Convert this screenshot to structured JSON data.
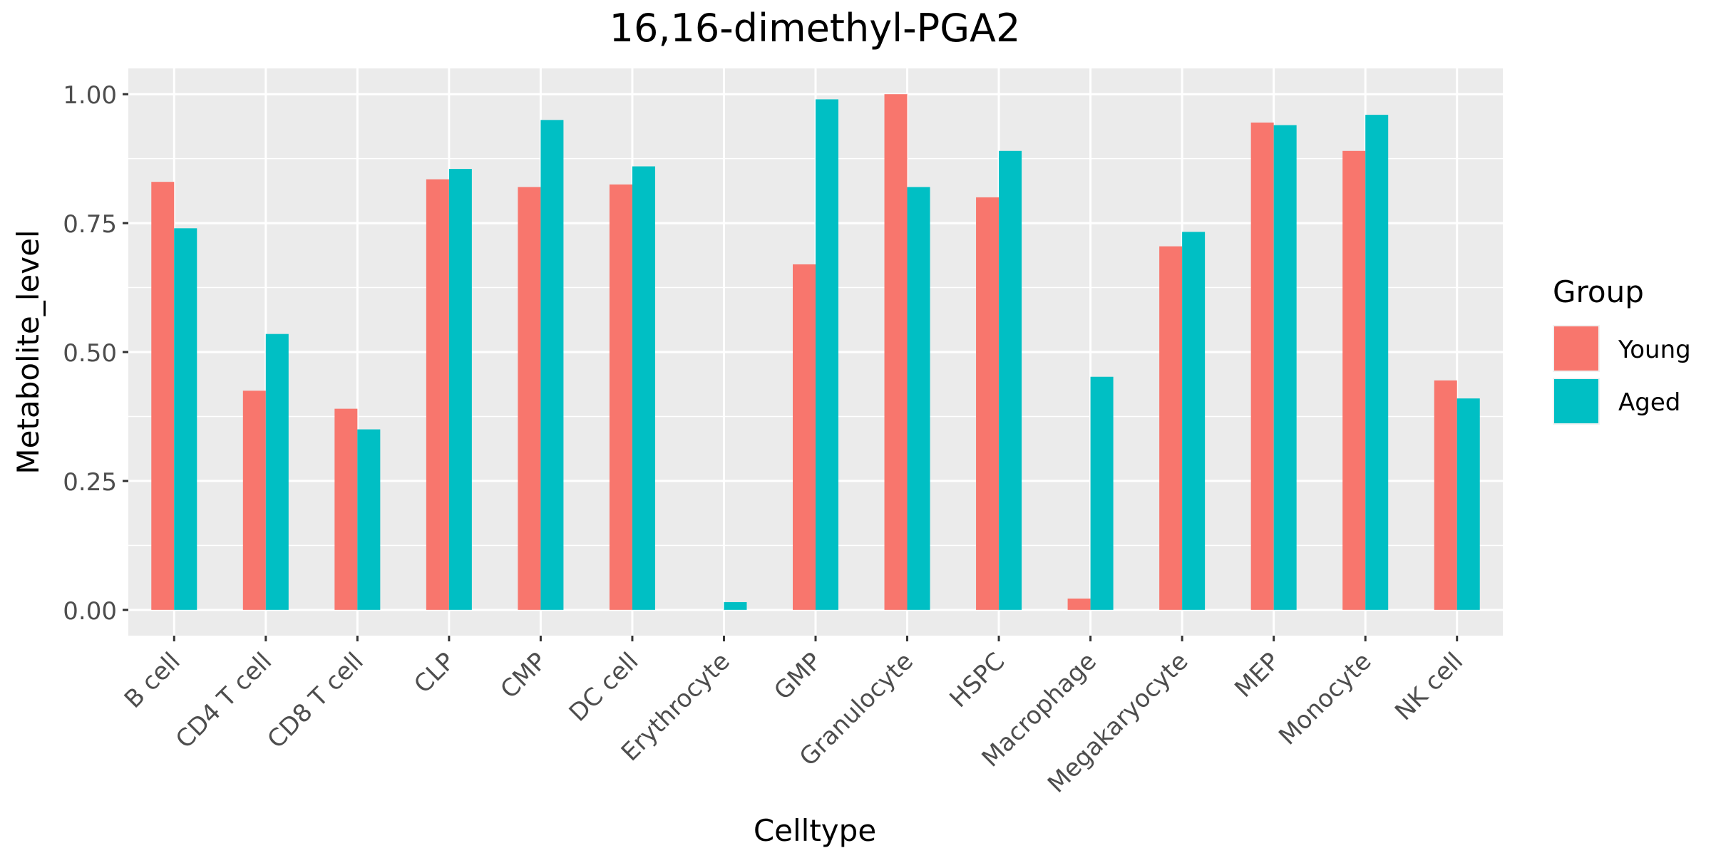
{
  "chart_data": {
    "type": "bar",
    "title": "16,16-dimethyl-PGA2",
    "xlabel": "Celltype",
    "ylabel": "Metabolite_level",
    "ylim": [
      -0.05,
      1.05
    ],
    "yticks": [
      0.0,
      0.25,
      0.5,
      0.75,
      1.0
    ],
    "ytick_labels": [
      "0.00",
      "0.25",
      "0.50",
      "0.75",
      "1.00"
    ],
    "grid": true,
    "legend_position": "right",
    "legend_title": "Group",
    "categories": [
      "B cell",
      "CD4 T cell",
      "CD8 T cell",
      "CLP",
      "CMP",
      "DC cell",
      "Erythrocyte",
      "GMP",
      "Granulocyte",
      "HSPC",
      "Macrophage",
      "Megakaryocyte",
      "MEP",
      "Monocyte",
      "NK cell"
    ],
    "series": [
      {
        "name": "Young",
        "color": "#F8766D",
        "values": [
          0.83,
          0.425,
          0.39,
          0.835,
          0.82,
          0.825,
          0.0,
          0.67,
          1.0,
          0.8,
          0.022,
          0.705,
          0.945,
          0.89,
          0.445
        ]
      },
      {
        "name": "Aged",
        "color": "#00BFC4",
        "values": [
          0.74,
          0.535,
          0.35,
          0.855,
          0.95,
          0.86,
          0.015,
          0.99,
          0.82,
          0.89,
          0.452,
          0.733,
          0.94,
          0.96,
          0.41
        ]
      }
    ],
    "panel_background": "#EBEBEB",
    "grid_color": "#FFFFFF"
  }
}
